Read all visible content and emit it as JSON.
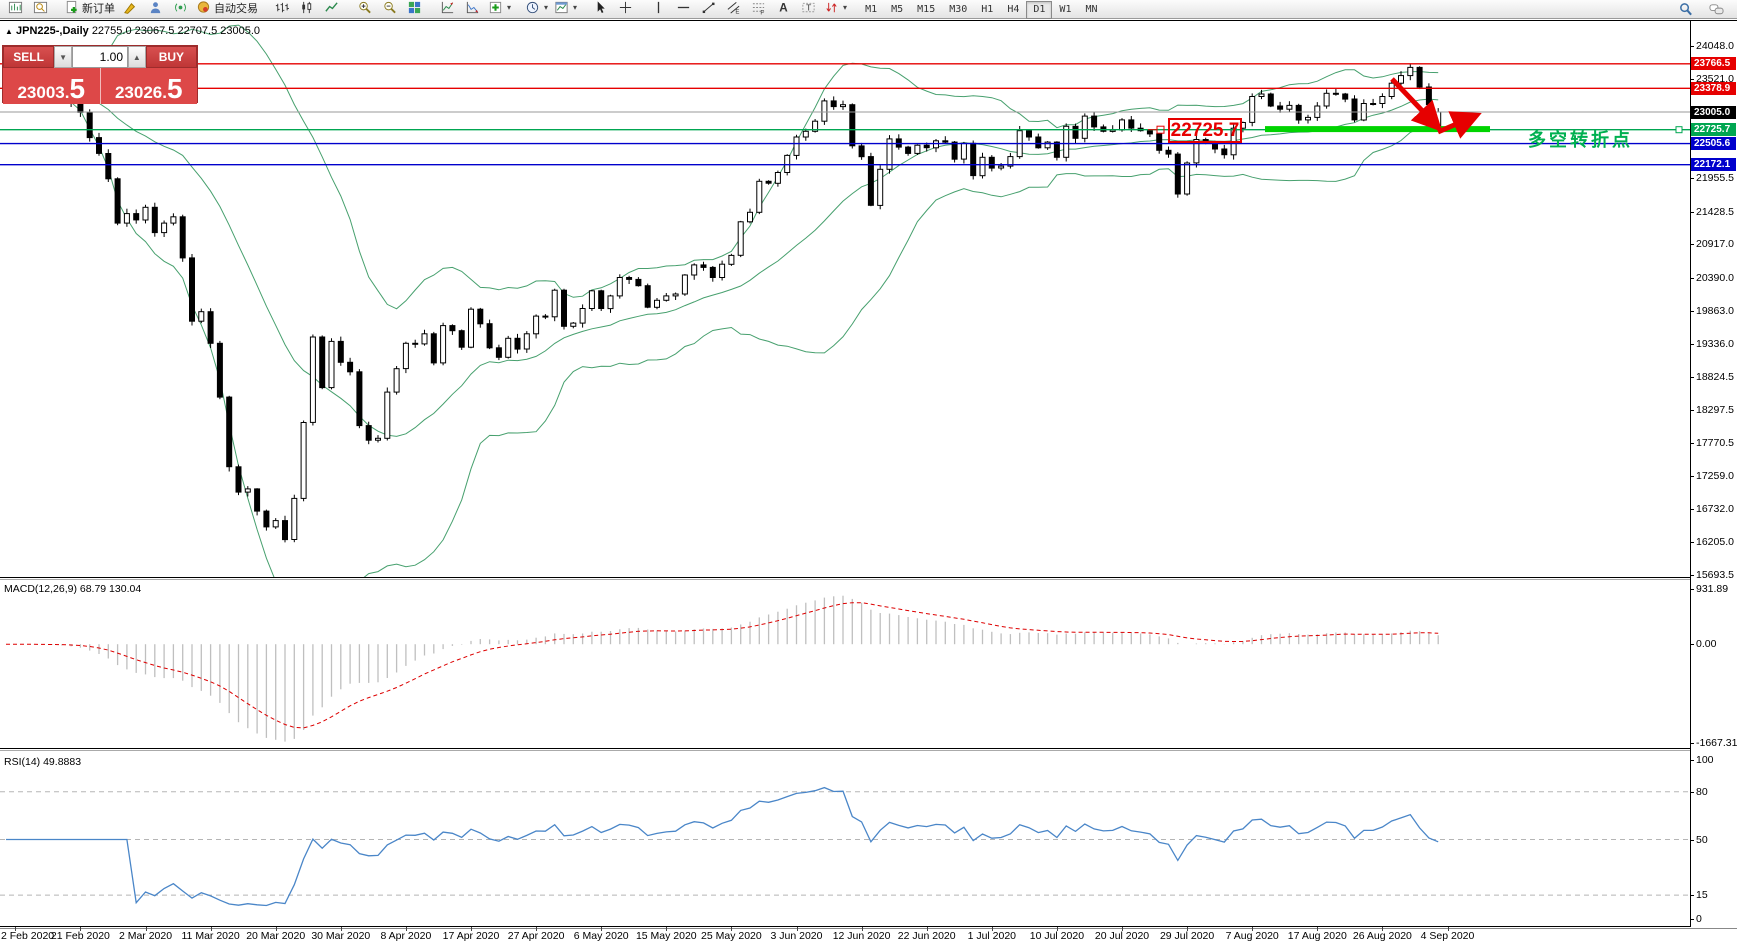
{
  "toolbar": {
    "left_items": [
      {
        "icon": "chart-window-icon"
      },
      {
        "icon": "data-window-icon"
      },
      {
        "sep": true
      },
      {
        "icon": "new-order-icon",
        "label": "新订单",
        "name": "new-order-button",
        "label_key": "new_order_label"
      },
      {
        "icon": "styler-icon"
      },
      {
        "icon": "expert-icon"
      },
      {
        "icon": "signals-icon"
      },
      {
        "icon": "autotrading-icon",
        "label": "自动交易",
        "name": "autotrading-button",
        "label_key": "autotrading_label"
      },
      {
        "sep": true
      },
      {
        "icon": "bars-icon"
      },
      {
        "icon": "candles-icon"
      },
      {
        "icon": "linechart-icon"
      },
      {
        "sep": true
      },
      {
        "icon": "zoom-in-icon"
      },
      {
        "icon": "zoom-out-icon"
      },
      {
        "icon": "tiles-icon"
      },
      {
        "sep": true
      },
      {
        "icon": "indicator1-icon"
      },
      {
        "icon": "indicator2-icon"
      },
      {
        "icon": "add-indicator-icon",
        "dd": true
      },
      {
        "sep": true
      },
      {
        "icon": "periods-icon",
        "dd": true
      },
      {
        "icon": "template-icon",
        "dd": true
      },
      {
        "sep": true
      },
      {
        "icon": "cursor-icon"
      },
      {
        "icon": "crosshair-icon"
      },
      {
        "sep": true
      },
      {
        "icon": "vline-icon"
      },
      {
        "icon": "hline-icon"
      },
      {
        "icon": "trendline-icon"
      },
      {
        "icon": "channel-icon"
      },
      {
        "icon": "fibonacci-icon"
      },
      {
        "icon": "text-icon"
      },
      {
        "icon": "textlabel-icon"
      },
      {
        "icon": "arrows-icon",
        "dd": true
      },
      {
        "sep": true
      }
    ],
    "new_order_label": "新订单",
    "autotrading_label": "自动交易",
    "timeframes": [
      "M1",
      "M5",
      "M15",
      "M30",
      "H1",
      "H4",
      "D1",
      "W1",
      "MN"
    ],
    "active_timeframe": "D1"
  },
  "chart": {
    "collapse": "▲",
    "title_symbol": "JPN225-,Daily",
    "title_ohlc": "22755.0 23067.5 22707.5 23005.0"
  },
  "quote_panel": {
    "sell_label": "SELL",
    "buy_label": "BUY",
    "volume": "1.00",
    "sell_price": "23003.5",
    "buy_price": "23026.5"
  },
  "annotations": {
    "support_price": "22725.7",
    "turning_point": "多空转折点"
  },
  "indicators": {
    "macd_label": "MACD(12,26,9) 68.79 130.04",
    "rsi_label": "RSI(14) 49.8883"
  },
  "colors": {
    "level_red": "#e60000",
    "level_blue": "#0000cc",
    "level_green": "#00a651",
    "thick_green": "#00d400",
    "bid_gray": "#9a9a9a",
    "bollinger": "#47a06e",
    "macd_hist": "#bfbfbf",
    "macd_signal": "#dd0000",
    "rsi_line": "#4a86c8",
    "annotation_red": "#e60000",
    "annotation_green_text": "#00b050",
    "badge_black": "#000000"
  },
  "chart_data": {
    "type": "candlestick",
    "symbol": "JPN225",
    "timeframe": "Daily",
    "ohlc_title": {
      "open": 22755.0,
      "high": 23067.5,
      "low": 22707.5,
      "close": 23005.0
    },
    "last_open": 22755.0,
    "x_labels": [
      "2 Feb 2020",
      "21 Feb 2020",
      "2 Mar 2020",
      "11 Mar 2020",
      "20 Mar 2020",
      "30 Mar 2020",
      "8 Apr 2020",
      "17 Apr 2020",
      "27 Apr 2020",
      "6 May 2020",
      "15 May 2020",
      "25 May 2020",
      "3 Jun 2020",
      "12 Jun 2020",
      "22 Jun 2020",
      "1 Jul 2020",
      "10 Jul 2020",
      "20 Jul 2020",
      "29 Jul 2020",
      "7 Aug 2020",
      "17 Aug 2020",
      "26 Aug 2020",
      "4 Sep 2020"
    ],
    "closes": [
      23400,
      23380,
      23420,
      23350,
      23300,
      23380,
      23250,
      23150,
      23000,
      22600,
      22350,
      21950,
      21250,
      21400,
      21300,
      21500,
      21100,
      21250,
      21350,
      20700,
      19700,
      19850,
      19350,
      18500,
      17400,
      17000,
      17050,
      16700,
      16450,
      16550,
      16250,
      16900,
      18100,
      19450,
      18650,
      19380,
      19050,
      18900,
      18050,
      17820,
      17850,
      18580,
      18950,
      19350,
      19340,
      19500,
      19040,
      19630,
      19550,
      19290,
      19890,
      19660,
      19280,
      19130,
      19430,
      19260,
      19500,
      19780,
      19770,
      20190,
      19620,
      19670,
      19900,
      20180,
      19900,
      20100,
      20390,
      20360,
      20260,
      19920,
      20030,
      20100,
      20130,
      20430,
      20590,
      20550,
      20390,
      20600,
      20740,
      21270,
      21420,
      21910,
      21880,
      22050,
      22320,
      22610,
      22700,
      22860,
      23180,
      23090,
      23120,
      22470,
      22300,
      21530,
      22100,
      22580,
      22450,
      22350,
      22480,
      22440,
      22550,
      22530,
      22260,
      22510,
      22000,
      22290,
      22120,
      22150,
      22300,
      22710,
      22610,
      22440,
      22530,
      22290,
      22780,
      22590,
      22940,
      22770,
      22700,
      22720,
      22880,
      22750,
      22710,
      22660,
      22400,
      22340,
      21710,
      22200,
      22570,
      22510,
      22420,
      22330,
      22750,
      22840,
      23250,
      23290,
      23100,
      23050,
      23110,
      22880,
      22920,
      23100,
      23300,
      23290,
      23210,
      22880,
      23140,
      23140,
      23250,
      23460,
      23580,
      23710,
      23400,
      23120,
      23005
    ],
    "y_axis": {
      "range": [
        15658,
        24443
      ],
      "ticks": [
        "24048.0",
        "23521.0",
        "21955.5",
        "21428.5",
        "20917.0",
        "20390.0",
        "19863.0",
        "19336.0",
        "18824.5",
        "18297.5",
        "17770.5",
        "17259.0",
        "16732.0",
        "16205.0",
        "15693.5"
      ],
      "badges": [
        {
          "v": "23766.5",
          "c": "#e60000"
        },
        {
          "v": "23378.9",
          "c": "#e60000"
        },
        {
          "v": "23005.0",
          "c": "#000000"
        },
        {
          "v": "22725.7",
          "c": "#00a651"
        },
        {
          "v": "22505.6",
          "c": "#0000cc"
        },
        {
          "v": "22172.1",
          "c": "#0000cc"
        }
      ]
    },
    "levels": {
      "red": [
        23766.5,
        23378.9
      ],
      "blue": [
        22505.6,
        22172.1
      ],
      "green_line": 22725.7,
      "bid_line": 23005.0,
      "thick_green": 22735
    },
    "indicator_panes": {
      "bollinger": {
        "period": 20,
        "deviation": 2
      },
      "macd": {
        "fast": 12,
        "slow": 26,
        "signal": 9,
        "value": 68.79,
        "signal_value": 130.04,
        "scale_ticks": [
          "931.89",
          "0.00",
          "-1667.31"
        ],
        "range": [
          -1667.31,
          931.89
        ]
      },
      "rsi": {
        "period": 14,
        "value": 49.8883,
        "scale_ticks": [
          "100",
          "80",
          "50",
          "15",
          "0"
        ],
        "dashed_levels": [
          80,
          50,
          15
        ],
        "range": [
          0,
          100
        ]
      }
    },
    "grid": "off",
    "legend_position": "none"
  }
}
